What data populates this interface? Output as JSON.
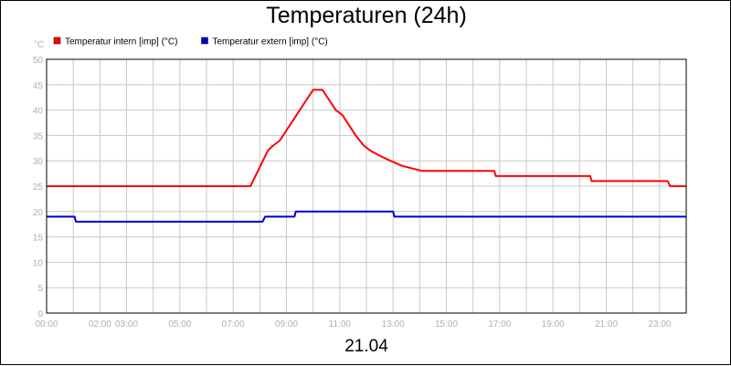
{
  "chart_data": {
    "type": "line",
    "title": "Temperaturen (24h)",
    "xlabel": "21.04",
    "ylabel": "°C",
    "ylim": [
      0,
      50
    ],
    "xlim_hours": [
      0,
      24
    ],
    "grid": true,
    "legend_position": "top-left",
    "x_ticks": [
      {
        "hour": 0,
        "label": "00:00"
      },
      {
        "hour": 2,
        "label": "02:00"
      },
      {
        "hour": 3,
        "label": "03:00"
      },
      {
        "hour": 5,
        "label": "05:00"
      },
      {
        "hour": 7,
        "label": "07:00"
      },
      {
        "hour": 9,
        "label": "09:00"
      },
      {
        "hour": 11,
        "label": "11:00"
      },
      {
        "hour": 13,
        "label": "13:00"
      },
      {
        "hour": 15,
        "label": "15:00"
      },
      {
        "hour": 17,
        "label": "17:00"
      },
      {
        "hour": 19,
        "label": "19:00"
      },
      {
        "hour": 21,
        "label": "21:00"
      },
      {
        "hour": 23,
        "label": "23:00"
      }
    ],
    "y_ticks": [
      0,
      5,
      10,
      15,
      20,
      25,
      30,
      35,
      40,
      45,
      50
    ],
    "series": [
      {
        "name": "Temperatur intern [imp] (°C)",
        "color": "#ff0000",
        "points": [
          [
            0,
            25
          ],
          [
            7.65,
            25
          ],
          [
            8.3,
            32
          ],
          [
            8.5,
            33
          ],
          [
            8.75,
            34
          ],
          [
            9.0,
            36
          ],
          [
            9.25,
            38
          ],
          [
            9.5,
            40
          ],
          [
            9.75,
            42
          ],
          [
            10.0,
            44
          ],
          [
            10.35,
            44
          ],
          [
            10.6,
            42
          ],
          [
            10.85,
            40
          ],
          [
            11.1,
            39
          ],
          [
            11.35,
            37
          ],
          [
            11.6,
            35
          ],
          [
            11.9,
            33
          ],
          [
            12.15,
            32
          ],
          [
            12.5,
            31
          ],
          [
            12.9,
            30
          ],
          [
            13.35,
            29
          ],
          [
            14.1,
            28
          ],
          [
            16.8,
            28
          ],
          [
            16.85,
            27
          ],
          [
            20.4,
            27
          ],
          [
            20.45,
            26
          ],
          [
            23.3,
            26
          ],
          [
            23.4,
            25
          ],
          [
            24.0,
            25
          ]
        ]
      },
      {
        "name": "Temperatur extern [imp] (°C)",
        "color": "#0000cc",
        "points": [
          [
            0,
            19
          ],
          [
            1.05,
            19
          ],
          [
            1.1,
            18
          ],
          [
            8.1,
            18
          ],
          [
            8.2,
            19
          ],
          [
            9.3,
            19
          ],
          [
            9.35,
            20
          ],
          [
            13.0,
            20
          ],
          [
            13.05,
            19
          ],
          [
            24.0,
            19
          ]
        ]
      }
    ]
  }
}
